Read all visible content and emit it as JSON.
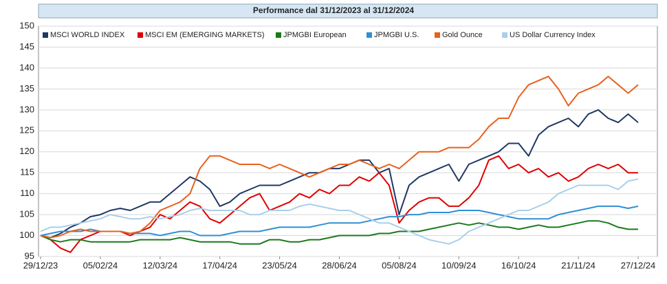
{
  "chart_data": {
    "type": "line",
    "title": "Performance dal 31/12/2023 al 31/12/2024",
    "categories": [
      "29/12/23",
      null,
      null,
      null,
      null,
      null,
      "05/02/24",
      null,
      null,
      null,
      null,
      null,
      "12/03/24",
      null,
      null,
      null,
      null,
      null,
      "17/04/24",
      null,
      null,
      null,
      null,
      null,
      "23/05/24",
      null,
      null,
      null,
      null,
      null,
      "28/06/24",
      null,
      null,
      null,
      null,
      null,
      "05/08/24",
      null,
      null,
      null,
      null,
      null,
      "10/09/24",
      null,
      null,
      null,
      null,
      null,
      "16/10/24",
      null,
      null,
      null,
      null,
      null,
      "21/11/24",
      null,
      null,
      null,
      null,
      null,
      "27/12/24"
    ],
    "ylim": [
      95,
      150
    ],
    "yticks": [
      95,
      100,
      105,
      110,
      115,
      120,
      125,
      130,
      135,
      140,
      145,
      150
    ],
    "grid": true,
    "legend": "top-left",
    "series": [
      {
        "name": "MSCI WORLD INDEX",
        "color": "#1f3864",
        "values": [
          100,
          99.5,
          100.5,
          102,
          103,
          104.5,
          105,
          106,
          106.5,
          106,
          107,
          108,
          108,
          110,
          112,
          114,
          113,
          111,
          107,
          108,
          110,
          111,
          112,
          112,
          112,
          113,
          114,
          115,
          115,
          116,
          116,
          117,
          118,
          118,
          115,
          116,
          105,
          112,
          114,
          115,
          116,
          117,
          113,
          117,
          118,
          119,
          120,
          122,
          122,
          119,
          124,
          126,
          127,
          128,
          126,
          129,
          130,
          128,
          127,
          129,
          127
        ]
      },
      {
        "name": "MSCI EM (EMERGING MARKETS)",
        "color": "#e00000",
        "values": [
          100,
          99,
          97,
          96,
          99,
          100,
          101,
          101,
          101,
          100,
          101,
          102,
          105,
          104,
          106,
          108,
          107,
          104,
          103,
          105,
          107,
          109,
          110,
          106,
          107,
          108,
          110,
          109,
          111,
          110,
          112,
          112,
          114,
          113,
          115,
          112,
          103,
          106,
          108,
          109,
          109,
          107,
          107,
          109,
          112,
          118,
          119,
          116,
          117,
          115,
          116,
          114,
          115,
          113,
          114,
          116,
          117,
          116,
          117,
          115,
          115
        ]
      },
      {
        "name": "JPMGBI European",
        "color": "#1a7a1a",
        "values": [
          100,
          99,
          98.5,
          99,
          99,
          98.5,
          98.5,
          98.5,
          98.5,
          98.5,
          99,
          99,
          99,
          99,
          99.5,
          99,
          98.5,
          98.5,
          98.5,
          98.5,
          98,
          98,
          98,
          99,
          99,
          98.5,
          98.5,
          99,
          99,
          99.5,
          100,
          100,
          100,
          100,
          100.5,
          100.5,
          101,
          101,
          101,
          101.5,
          102,
          102.5,
          103,
          102.5,
          103,
          102.5,
          102,
          102,
          101.5,
          102,
          102.5,
          102,
          102,
          102.5,
          103,
          103.5,
          103.5,
          103,
          102,
          101.5,
          101.5
        ]
      },
      {
        "name": "JPMGBI U.S.",
        "color": "#2e8fd4",
        "values": [
          100,
          100.5,
          101,
          101,
          101,
          101.5,
          101,
          101,
          101,
          100.5,
          100.5,
          100.5,
          100,
          100.5,
          101,
          101,
          100,
          100,
          100,
          100.5,
          101,
          101,
          101,
          101.5,
          102,
          102,
          102,
          102,
          102.5,
          103,
          103,
          103,
          103,
          103.5,
          104,
          104.5,
          104.5,
          105,
          105,
          105.5,
          105.5,
          105.5,
          106,
          106,
          106,
          105.5,
          105,
          104.5,
          104,
          104,
          104,
          104,
          105,
          105.5,
          106,
          106.5,
          107,
          107,
          107,
          106.5,
          107
        ]
      },
      {
        "name": "Gold Ounce",
        "color": "#e8601c",
        "values": [
          100,
          99.5,
          100,
          101,
          101.5,
          101,
          101,
          101,
          101,
          100.5,
          101,
          103,
          106,
          107,
          108,
          110,
          116,
          119,
          119,
          118,
          117,
          117,
          117,
          116,
          117,
          116,
          115,
          114,
          115,
          116,
          117,
          117,
          118,
          117,
          116,
          117,
          116,
          118,
          120,
          120,
          120,
          121,
          121,
          121,
          123,
          126,
          128,
          128,
          133,
          136,
          137,
          138,
          135,
          131,
          134,
          135,
          136,
          138,
          136,
          134,
          136
        ]
      },
      {
        "name": "US Dollar Currency Index",
        "color": "#a9cfe9",
        "values": [
          101,
          102,
          102,
          102.5,
          103,
          103.5,
          104,
          105,
          104.5,
          104,
          104,
          104.5,
          104,
          104.5,
          105,
          106,
          106.5,
          106,
          106,
          106,
          106,
          105,
          105,
          106,
          106,
          106,
          107,
          107.5,
          107,
          106.5,
          106,
          106,
          105,
          104,
          103,
          103,
          102,
          101,
          100,
          99,
          98.5,
          98,
          99,
          101,
          102,
          103,
          104,
          105,
          106,
          106,
          107,
          108,
          110,
          111,
          112,
          112,
          112,
          112,
          111,
          113,
          113.5
        ]
      }
    ]
  }
}
